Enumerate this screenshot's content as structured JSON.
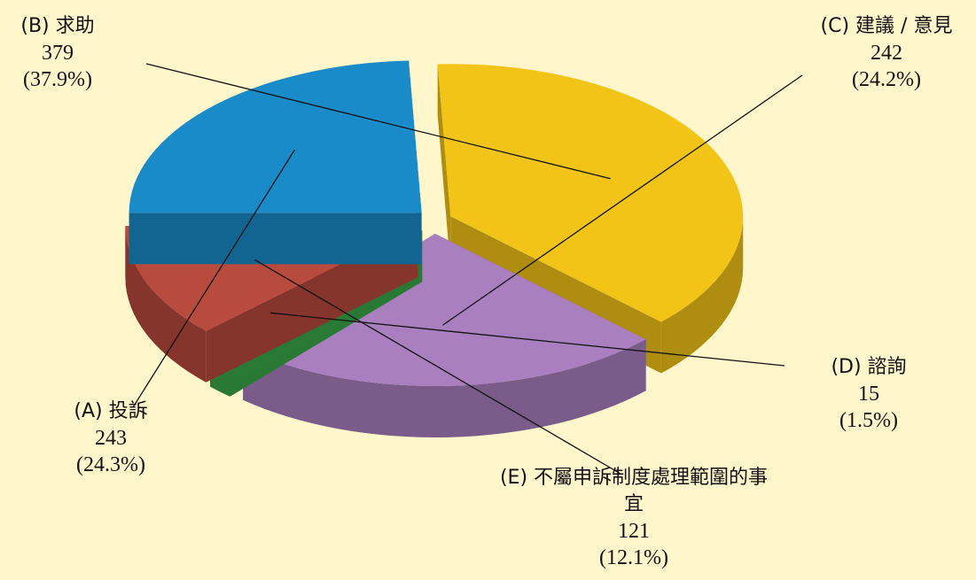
{
  "chart_data": {
    "type": "pie3d",
    "categories": [
      "(A) 投訴",
      "(B) 求助",
      "(C) 建議 / 意見",
      "(D) 諮詢",
      "(E) 不屬申訴制度處理範圍的事宜"
    ],
    "values": [
      243,
      379,
      242,
      15,
      121
    ],
    "percentages": [
      24.3,
      37.9,
      24.2,
      1.5,
      12.1
    ],
    "percentage_labels": [
      "(24.3%)",
      "(37.9%)",
      "(24.2%)",
      "(1.5%)",
      "(12.1%)"
    ],
    "colors": [
      "#1a8bc9",
      "#f2c418",
      "#a97fc0",
      "#3aa84a",
      "#b94a3e"
    ],
    "draw_order": [
      1,
      2,
      3,
      4,
      0
    ]
  }
}
